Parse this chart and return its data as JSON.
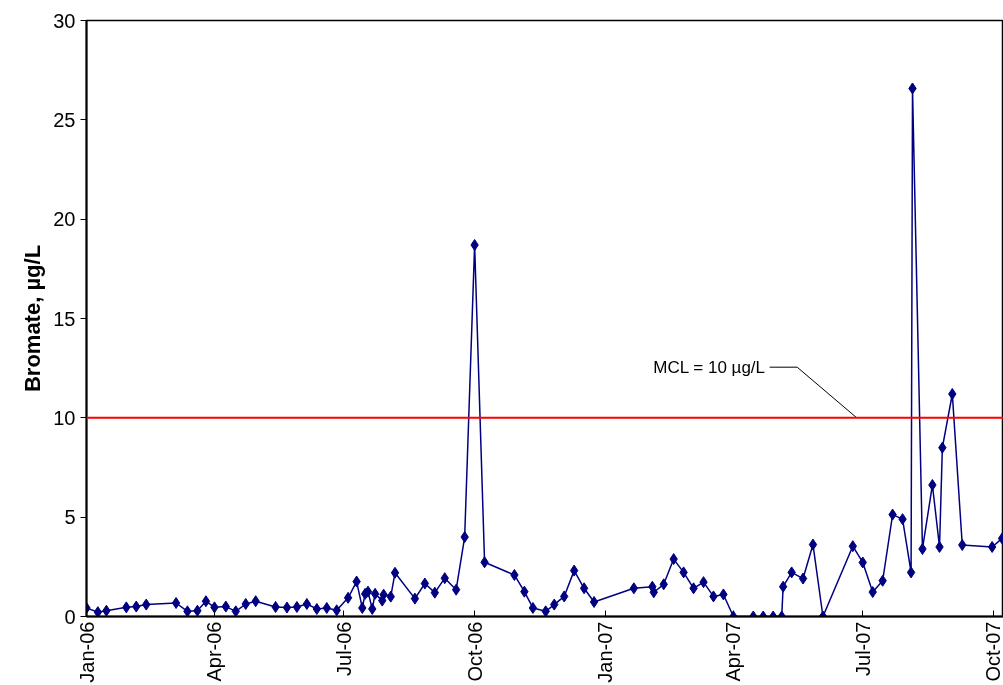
{
  "chart_data": {
    "type": "line",
    "ylabel": "Bromate, µg/L",
    "x": [
      "2006-01-01",
      "2006-01-09",
      "2006-01-15",
      "2006-01-29",
      "2006-02-05",
      "2006-02-12",
      "2006-03-05",
      "2006-03-13",
      "2006-03-20",
      "2006-03-26",
      "2006-04-01",
      "2006-04-09",
      "2006-04-16",
      "2006-04-23",
      "2006-04-30",
      "2006-05-14",
      "2006-05-22",
      "2006-05-29",
      "2006-06-05",
      "2006-06-12",
      "2006-06-19",
      "2006-06-26",
      "2006-07-04",
      "2006-07-10",
      "2006-07-14",
      "2006-07-16",
      "2006-07-18",
      "2006-07-21",
      "2006-07-23",
      "2006-07-28",
      "2006-07-29",
      "2006-08-03",
      "2006-08-06",
      "2006-08-20",
      "2006-08-27",
      "2006-09-03",
      "2006-09-10",
      "2006-09-18",
      "2006-09-24",
      "2006-10-01",
      "2006-10-08",
      "2006-10-29",
      "2006-11-05",
      "2006-11-11",
      "2006-11-20",
      "2006-11-26",
      "2006-12-03",
      "2006-12-10",
      "2006-12-17",
      "2006-12-24",
      "2007-01-21",
      "2007-02-03",
      "2007-02-04",
      "2007-02-11",
      "2007-02-18",
      "2007-02-25",
      "2007-03-04",
      "2007-03-11",
      "2007-03-18",
      "2007-03-25",
      "2007-04-01",
      "2007-04-15",
      "2007-04-22",
      "2007-04-29",
      "2007-05-05",
      "2007-05-06",
      "2007-05-12",
      "2007-05-20",
      "2007-05-27",
      "2007-06-03",
      "2007-06-24",
      "2007-07-01",
      "2007-07-08",
      "2007-07-15",
      "2007-07-22",
      "2007-07-29",
      "2007-08-04",
      "2007-08-05",
      "2007-08-12",
      "2007-08-19",
      "2007-08-24",
      "2007-08-26",
      "2007-09-02",
      "2007-09-09",
      "2007-09-30",
      "2007-10-07"
    ],
    "series": [
      {
        "color": "#000080",
        "values": [
          0.43,
          0.22,
          0.29,
          0.46,
          0.5,
          0.6,
          0.68,
          0.26,
          0.29,
          0.77,
          0.46,
          0.5,
          0.26,
          0.63,
          0.77,
          0.48,
          0.45,
          0.48,
          0.63,
          0.38,
          0.43,
          0.31,
          0.94,
          1.76,
          0.43,
          1.14,
          1.25,
          0.38,
          1.14,
          0.8,
          1.1,
          1.0,
          2.2,
          0.9,
          1.66,
          1.2,
          1.93,
          1.35,
          4.0,
          18.7,
          2.73,
          2.09,
          1.25,
          0.43,
          0.26,
          0.6,
          1.01,
          2.31,
          1.42,
          0.73,
          1.42,
          1.5,
          1.22,
          1.62,
          2.89,
          2.22,
          1.42,
          1.73,
          1.01,
          1.11,
          0,
          0,
          0,
          0,
          0,
          1.5,
          2.22,
          1.91,
          3.62,
          0,
          3.54,
          2.72,
          1.23,
          1.8,
          5.13,
          4.9,
          2.22,
          26.58,
          3.4,
          6.62,
          3.5,
          8.5,
          11.2,
          3.6,
          3.5,
          3.93
        ]
      }
    ],
    "xlim": [
      "2006-01-01",
      "2007-10-08"
    ],
    "xticks": [
      {
        "value": "2006-01-01",
        "label": "Jan-06"
      },
      {
        "value": "2006-04-01",
        "label": "Apr-06"
      },
      {
        "value": "2006-07-01",
        "label": "Jul-06"
      },
      {
        "value": "2006-10-01",
        "label": "Oct-06"
      },
      {
        "value": "2007-01-01",
        "label": "Jan-07"
      },
      {
        "value": "2007-04-01",
        "label": "Apr-07"
      },
      {
        "value": "2007-07-01",
        "label": "Jul-07"
      },
      {
        "value": "2007-10-01",
        "label": "Oct-07"
      }
    ],
    "ylim": [
      0,
      30
    ],
    "yticks": [
      0,
      5,
      10,
      15,
      20,
      25,
      30
    ],
    "ref_lines": [
      {
        "axis": "y",
        "value": 10,
        "label": "MCL = 10 µg/L",
        "color": "#ff0000"
      }
    ],
    "marker": "diamond",
    "line_style": "solid",
    "grid": false
  }
}
